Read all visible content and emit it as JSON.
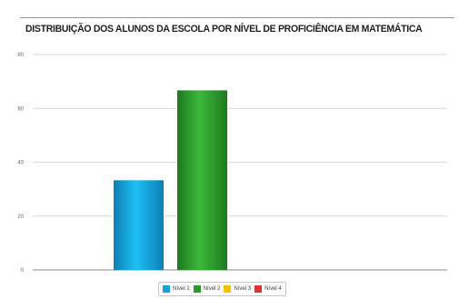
{
  "chart_data": {
    "type": "bar",
    "title": "DISTRIBUIÇÃO DOS ALUNOS DA ESCOLA POR NÍVEL DE PROFICIÊNCIA EM MATEMÁTICA",
    "xlabel": "",
    "ylabel": "",
    "ylim": [
      0,
      80
    ],
    "yticks": [
      "0",
      "20",
      "40",
      "60",
      "80"
    ],
    "grid": true,
    "legend_position": "bottom",
    "series": [
      {
        "name": "Nível 1",
        "value": 33.3,
        "color": "#1ba2d6"
      },
      {
        "name": "Nível 2",
        "value": 66.7,
        "color": "#2e9a2e"
      },
      {
        "name": "Nível 3",
        "value": 0,
        "color": "#f2c200"
      },
      {
        "name": "Nível 4",
        "value": 0,
        "color": "#d93434"
      }
    ]
  }
}
